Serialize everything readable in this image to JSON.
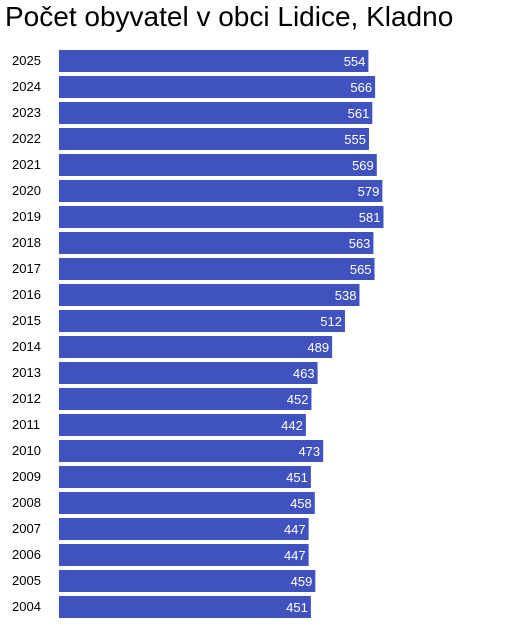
{
  "chart_data": {
    "type": "bar",
    "orientation": "horizontal",
    "title": "Počet obyvatel v obci Lidice, Kladno",
    "xlabel": "",
    "ylabel": "",
    "categories": [
      "2025",
      "2024",
      "2023",
      "2022",
      "2021",
      "2020",
      "2019",
      "2018",
      "2017",
      "2016",
      "2015",
      "2014",
      "2013",
      "2012",
      "2011",
      "2010",
      "2009",
      "2008",
      "2007",
      "2006",
      "2005",
      "2004"
    ],
    "values": [
      554,
      566,
      561,
      555,
      569,
      579,
      581,
      563,
      565,
      538,
      512,
      489,
      463,
      452,
      442,
      473,
      451,
      458,
      447,
      447,
      459,
      451
    ],
    "xlim": [
      0,
      600
    ],
    "grid": false,
    "legend": "none",
    "bar_color": "#4052c0",
    "label_color": "#ffffff"
  }
}
